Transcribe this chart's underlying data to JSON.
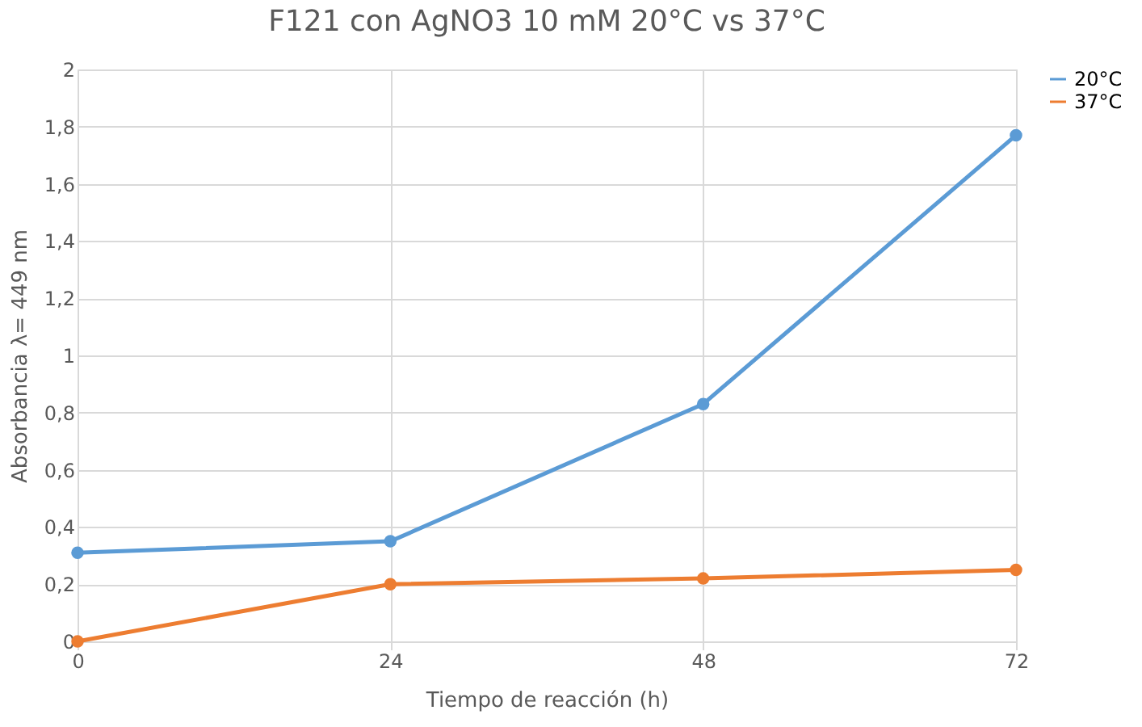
{
  "chart_data": {
    "type": "line",
    "title": "F121 con AgNO3 10 mM 20°C vs 37°C",
    "xlabel": "Tiempo de reacción (h)",
    "ylabel": "Absorbancia λ= 449 nm",
    "x": [
      0,
      24,
      48,
      72
    ],
    "series": [
      {
        "name": "20°C",
        "color": "#5b9bd5",
        "values": [
          0.31,
          0.35,
          0.83,
          1.77
        ]
      },
      {
        "name": "37°C",
        "color": "#ed7d31",
        "values": [
          0,
          0.2,
          0.22,
          0.25
        ]
      }
    ],
    "xlim": [
      0,
      72
    ],
    "xticks": [
      0,
      24,
      48,
      72
    ],
    "ylim": [
      0,
      2
    ],
    "yticks": [
      0,
      {
        "value": 0.2,
        "label": "0,2"
      },
      {
        "value": 0.4,
        "label": "0,4"
      },
      {
        "value": 0.6,
        "label": "0,6"
      },
      {
        "value": 0.8,
        "label": "0,8"
      },
      1,
      {
        "value": 1.2,
        "label": "1,2"
      },
      {
        "value": 1.4,
        "label": "1,4"
      },
      {
        "value": 1.6,
        "label": "1,6"
      },
      {
        "value": 1.8,
        "label": "1,8"
      },
      2
    ],
    "grid": true,
    "legend": "right",
    "marker": "circle",
    "line_style": "solid"
  }
}
